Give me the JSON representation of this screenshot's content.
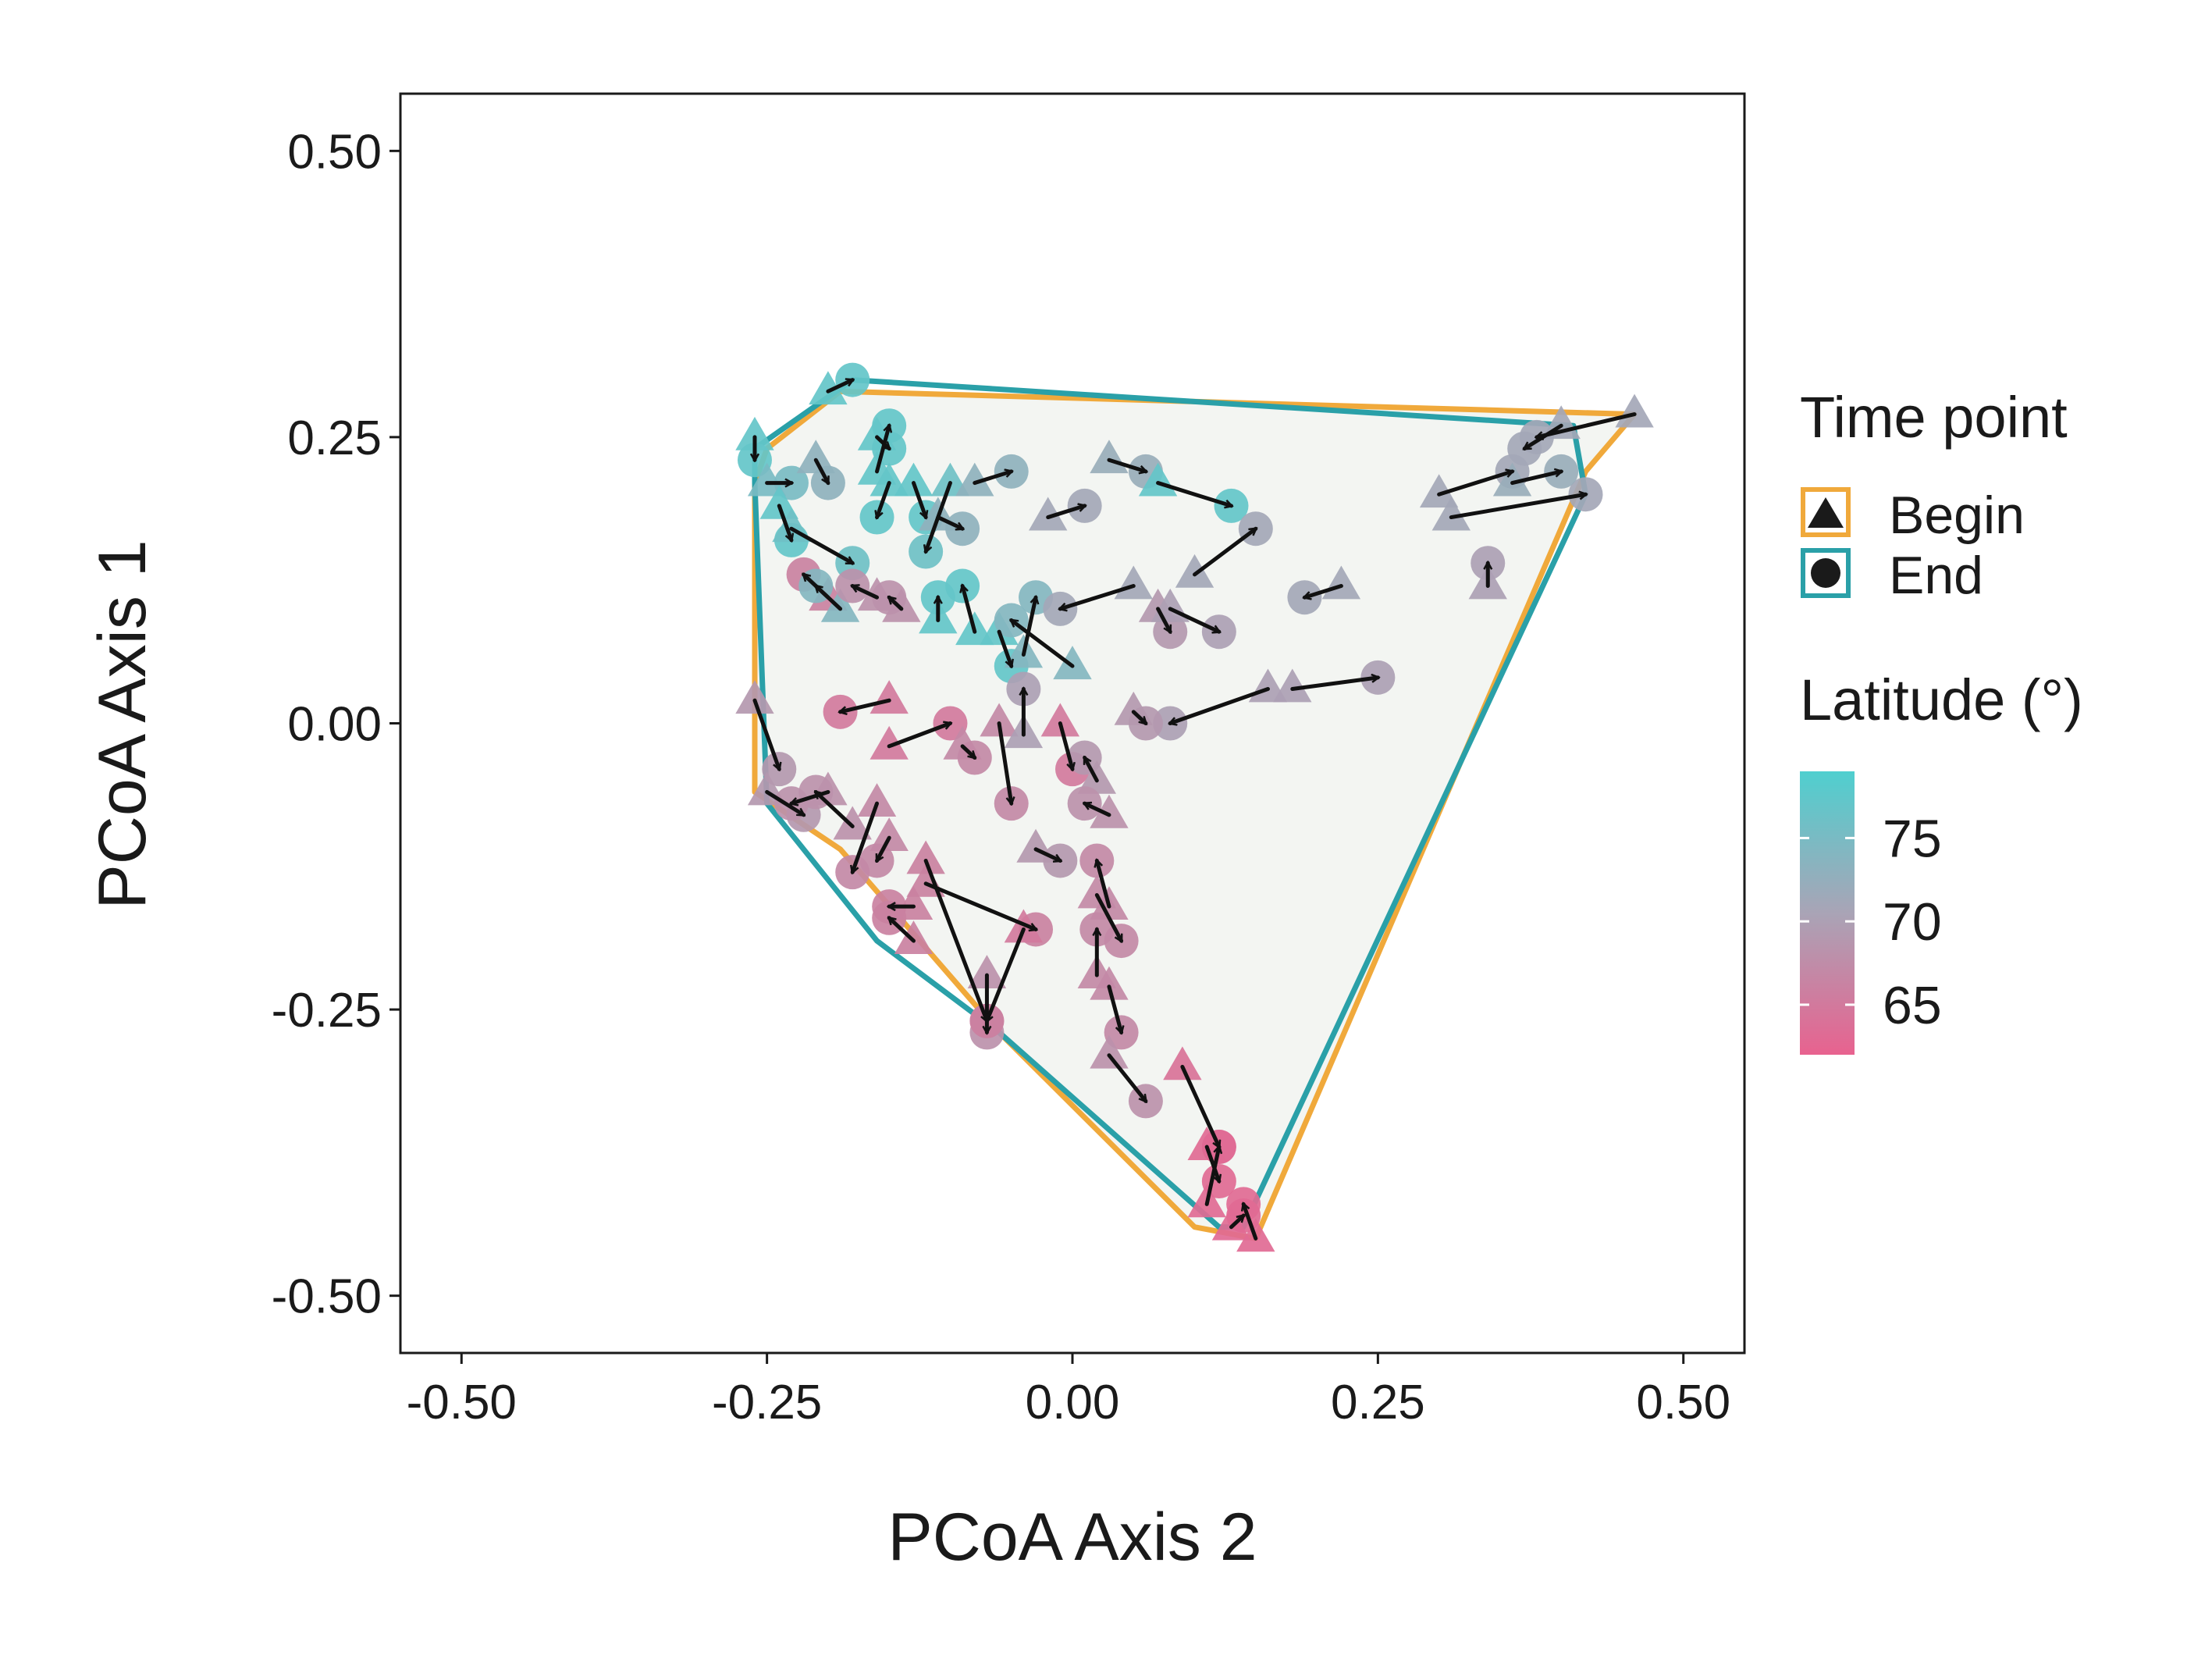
{
  "chart_data": {
    "type": "scatter",
    "xlabel": "PCoA Axis 2",
    "ylabel": "PCoA Axis 1",
    "xlim": [
      -0.55,
      0.55
    ],
    "ylim": [
      -0.55,
      0.55
    ],
    "xticks": [
      "-0.50",
      "-0.25",
      "0.00",
      "0.25",
      "0.50"
    ],
    "yticks": [
      "-0.50",
      "-0.25",
      "0.00",
      "0.25",
      "0.50"
    ],
    "grid": false,
    "legend_position": "right",
    "colors": {
      "latitude_low": "#e8628f",
      "latitude_mid": "#a9a4b6",
      "latitude_high": "#4fcfcf",
      "hull_begin": "#f0a93b",
      "hull_end": "#2aa0a8",
      "hull_fill": "#f3f5f2",
      "arrow": "#111111"
    },
    "legend": {
      "shape_title": "Time point",
      "shape_entries": [
        {
          "label": "Begin",
          "shape": "triangle",
          "hull_color": "#f0a93b"
        },
        {
          "label": "End",
          "shape": "circle",
          "hull_color": "#2aa0a8"
        }
      ],
      "color_title": "Latitude (°)",
      "colorbar_ticks": [
        "75",
        "70",
        "65"
      ],
      "colorbar_tick_values": [
        75,
        70,
        65
      ],
      "colorbar_range": [
        62,
        79
      ]
    },
    "hull_begin": [
      [
        -0.25,
        0.24
      ],
      [
        -0.19,
        0.29
      ],
      [
        0.46,
        0.27
      ],
      [
        0.42,
        0.22
      ],
      [
        0.15,
        -0.45
      ],
      [
        0.1,
        -0.44
      ],
      [
        -0.06,
        -0.27
      ],
      [
        -0.19,
        -0.11
      ],
      [
        -0.26,
        -0.06
      ],
      [
        -0.26,
        0.0
      ],
      [
        -0.26,
        0.21
      ]
    ],
    "hull_end": [
      [
        -0.26,
        0.24
      ],
      [
        -0.18,
        0.3
      ],
      [
        0.41,
        0.26
      ],
      [
        0.42,
        0.2
      ],
      [
        0.14,
        -0.44
      ],
      [
        0.12,
        -0.44
      ],
      [
        -0.06,
        -0.27
      ],
      [
        -0.16,
        -0.19
      ],
      [
        -0.25,
        -0.07
      ],
      [
        -0.26,
        0.21
      ]
    ],
    "trajectories": [
      {
        "begin": [
          -0.2,
          0.29
        ],
        "end": [
          -0.18,
          0.3
        ],
        "lat": 77
      },
      {
        "begin": [
          -0.26,
          0.25
        ],
        "end": [
          -0.26,
          0.23
        ],
        "lat": 77
      },
      {
        "begin": [
          -0.25,
          0.21
        ],
        "end": [
          -0.23,
          0.21
        ],
        "lat": 75
      },
      {
        "begin": [
          -0.21,
          0.23
        ],
        "end": [
          -0.2,
          0.21
        ],
        "lat": 73
      },
      {
        "begin": [
          -0.16,
          0.25
        ],
        "end": [
          -0.15,
          0.24
        ],
        "lat": 77
      },
      {
        "begin": [
          -0.16,
          0.22
        ],
        "end": [
          -0.15,
          0.26
        ],
        "lat": 77
      },
      {
        "begin": [
          -0.15,
          0.21
        ],
        "end": [
          -0.16,
          0.18
        ],
        "lat": 77
      },
      {
        "begin": [
          -0.13,
          0.21
        ],
        "end": [
          -0.12,
          0.18
        ],
        "lat": 77
      },
      {
        "begin": [
          -0.1,
          0.21
        ],
        "end": [
          -0.12,
          0.15
        ],
        "lat": 76
      },
      {
        "begin": [
          -0.08,
          0.21
        ],
        "end": [
          -0.05,
          0.22
        ],
        "lat": 73
      },
      {
        "begin": [
          -0.24,
          0.19
        ],
        "end": [
          -0.23,
          0.16
        ],
        "lat": 77
      },
      {
        "begin": [
          -0.23,
          0.17
        ],
        "end": [
          -0.18,
          0.14
        ],
        "lat": 76
      },
      {
        "begin": [
          -0.11,
          0.18
        ],
        "end": [
          -0.09,
          0.17
        ],
        "lat": 73
      },
      {
        "begin": [
          0.03,
          0.23
        ],
        "end": [
          0.06,
          0.22
        ],
        "lat": 72
      },
      {
        "begin": [
          0.07,
          0.21
        ],
        "end": [
          0.13,
          0.19
        ],
        "lat": 77
      },
      {
        "begin": [
          -0.02,
          0.18
        ],
        "end": [
          0.01,
          0.19
        ],
        "lat": 71
      },
      {
        "begin": [
          0.1,
          0.13
        ],
        "end": [
          0.15,
          0.17
        ],
        "lat": 71
      },
      {
        "begin": [
          0.22,
          0.12
        ],
        "end": [
          0.19,
          0.11
        ],
        "lat": 71
      },
      {
        "begin": [
          0.34,
          0.12
        ],
        "end": [
          0.34,
          0.14
        ],
        "lat": 70
      },
      {
        "begin": [
          0.3,
          0.2
        ],
        "end": [
          0.36,
          0.22
        ],
        "lat": 71
      },
      {
        "begin": [
          0.31,
          0.18
        ],
        "end": [
          0.42,
          0.2
        ],
        "lat": 71
      },
      {
        "begin": [
          0.36,
          0.21
        ],
        "end": [
          0.4,
          0.22
        ],
        "lat": 72
      },
      {
        "begin": [
          0.4,
          0.26
        ],
        "end": [
          0.37,
          0.24
        ],
        "lat": 71
      },
      {
        "begin": [
          0.46,
          0.27
        ],
        "end": [
          0.38,
          0.25
        ],
        "lat": 71
      },
      {
        "begin": [
          -0.2,
          0.11
        ],
        "end": [
          -0.22,
          0.13
        ],
        "lat": 66
      },
      {
        "begin": [
          -0.19,
          0.1
        ],
        "end": [
          -0.21,
          0.12
        ],
        "lat": 74
      },
      {
        "begin": [
          -0.16,
          0.11
        ],
        "end": [
          -0.18,
          0.12
        ],
        "lat": 68
      },
      {
        "begin": [
          -0.14,
          0.1
        ],
        "end": [
          -0.15,
          0.11
        ],
        "lat": 68
      },
      {
        "begin": [
          -0.11,
          0.09
        ],
        "end": [
          -0.11,
          0.11
        ],
        "lat": 77
      },
      {
        "begin": [
          -0.08,
          0.08
        ],
        "end": [
          -0.09,
          0.12
        ],
        "lat": 77
      },
      {
        "begin": [
          -0.06,
          0.08
        ],
        "end": [
          -0.05,
          0.05
        ],
        "lat": 77
      },
      {
        "begin": [
          -0.04,
          0.06
        ],
        "end": [
          -0.03,
          0.11
        ],
        "lat": 74
      },
      {
        "begin": [
          0.0,
          0.05
        ],
        "end": [
          -0.05,
          0.09
        ],
        "lat": 74
      },
      {
        "begin": [
          0.05,
          0.12
        ],
        "end": [
          -0.01,
          0.1
        ],
        "lat": 71
      },
      {
        "begin": [
          0.07,
          0.1
        ],
        "end": [
          0.08,
          0.08
        ],
        "lat": 69
      },
      {
        "begin": [
          0.08,
          0.1
        ],
        "end": [
          0.12,
          0.08
        ],
        "lat": 70
      },
      {
        "begin": [
          0.16,
          0.03
        ],
        "end": [
          0.08,
          0.0
        ],
        "lat": 70
      },
      {
        "begin": [
          0.18,
          0.03
        ],
        "end": [
          0.25,
          0.04
        ],
        "lat": 70
      },
      {
        "begin": [
          0.05,
          0.01
        ],
        "end": [
          0.06,
          0.0
        ],
        "lat": 69
      },
      {
        "begin": [
          -0.26,
          0.02
        ],
        "end": [
          -0.24,
          -0.04
        ],
        "lat": 69
      },
      {
        "begin": [
          -0.15,
          0.02
        ],
        "end": [
          -0.19,
          0.01
        ],
        "lat": 65
      },
      {
        "begin": [
          -0.15,
          -0.02
        ],
        "end": [
          -0.1,
          0.0
        ],
        "lat": 65
      },
      {
        "begin": [
          -0.09,
          -0.02
        ],
        "end": [
          -0.08,
          -0.03
        ],
        "lat": 67
      },
      {
        "begin": [
          -0.06,
          0.0
        ],
        "end": [
          -0.05,
          -0.07
        ],
        "lat": 67
      },
      {
        "begin": [
          -0.04,
          -0.01
        ],
        "end": [
          -0.04,
          0.03
        ],
        "lat": 70
      },
      {
        "begin": [
          -0.01,
          0.0
        ],
        "end": [
          0.0,
          -0.04
        ],
        "lat": 65
      },
      {
        "begin": [
          -0.25,
          -0.06
        ],
        "end": [
          -0.22,
          -0.08
        ],
        "lat": 69
      },
      {
        "begin": [
          -0.2,
          -0.06
        ],
        "end": [
          -0.23,
          -0.07
        ],
        "lat": 68
      },
      {
        "begin": [
          -0.18,
          -0.09
        ],
        "end": [
          -0.21,
          -0.06
        ],
        "lat": 68
      },
      {
        "begin": [
          -0.16,
          -0.07
        ],
        "end": [
          -0.18,
          -0.13
        ],
        "lat": 67
      },
      {
        "begin": [
          -0.15,
          -0.1
        ],
        "end": [
          -0.16,
          -0.12
        ],
        "lat": 67
      },
      {
        "begin": [
          -0.13,
          -0.16
        ],
        "end": [
          -0.15,
          -0.16
        ],
        "lat": 66
      },
      {
        "begin": [
          -0.13,
          -0.19
        ],
        "end": [
          -0.15,
          -0.17
        ],
        "lat": 66
      },
      {
        "begin": [
          -0.12,
          -0.14
        ],
        "end": [
          -0.03,
          -0.18
        ],
        "lat": 66
      },
      {
        "begin": [
          -0.07,
          -0.22
        ],
        "end": [
          -0.07,
          -0.27
        ],
        "lat": 68
      },
      {
        "begin": [
          -0.04,
          -0.18
        ],
        "end": [
          -0.07,
          -0.26
        ],
        "lat": 65
      },
      {
        "begin": [
          -0.12,
          -0.12
        ],
        "end": [
          -0.07,
          -0.26
        ],
        "lat": 66
      },
      {
        "begin": [
          -0.03,
          -0.11
        ],
        "end": [
          -0.01,
          -0.12
        ],
        "lat": 69
      },
      {
        "begin": [
          0.02,
          -0.05
        ],
        "end": [
          0.01,
          -0.03
        ],
        "lat": 69
      },
      {
        "begin": [
          0.03,
          -0.08
        ],
        "end": [
          0.01,
          -0.07
        ],
        "lat": 68
      },
      {
        "begin": [
          0.02,
          -0.15
        ],
        "end": [
          0.04,
          -0.19
        ],
        "lat": 67
      },
      {
        "begin": [
          0.03,
          -0.16
        ],
        "end": [
          0.02,
          -0.12
        ],
        "lat": 67
      },
      {
        "begin": [
          0.02,
          -0.22
        ],
        "end": [
          0.02,
          -0.18
        ],
        "lat": 67
      },
      {
        "begin": [
          0.03,
          -0.23
        ],
        "end": [
          0.04,
          -0.27
        ],
        "lat": 67
      },
      {
        "begin": [
          0.03,
          -0.29
        ],
        "end": [
          0.06,
          -0.33
        ],
        "lat": 68
      },
      {
        "begin": [
          0.09,
          -0.3
        ],
        "end": [
          0.12,
          -0.37
        ],
        "lat": 64
      },
      {
        "begin": [
          0.11,
          -0.37
        ],
        "end": [
          0.12,
          -0.4
        ],
        "lat": 63
      },
      {
        "begin": [
          0.11,
          -0.42
        ],
        "end": [
          0.12,
          -0.37
        ],
        "lat": 63
      },
      {
        "begin": [
          0.13,
          -0.44
        ],
        "end": [
          0.14,
          -0.43
        ],
        "lat": 63
      },
      {
        "begin": [
          0.15,
          -0.45
        ],
        "end": [
          0.14,
          -0.42
        ],
        "lat": 63
      }
    ]
  }
}
